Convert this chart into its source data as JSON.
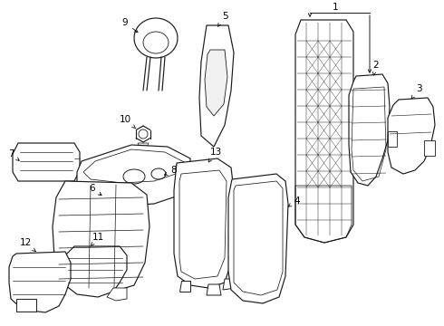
{
  "background_color": "#ffffff",
  "line_color": "#1a1a1a",
  "figsize": [
    4.9,
    3.6
  ],
  "dpi": 100,
  "label_fontsize": 7.5
}
